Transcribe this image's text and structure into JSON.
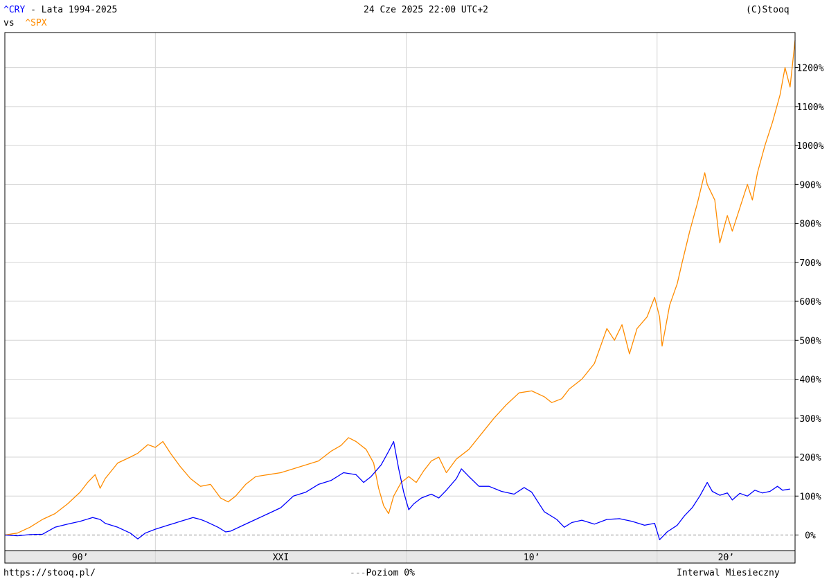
{
  "header": {
    "symbol_primary": "^CRY",
    "title_rest": " - Lata 1994-2025",
    "vs_label": "vs",
    "symbol_compare": "^SPX",
    "timestamp": "24 Cze 2025 22:00 UTC+2",
    "copyright": "(C)Stooq"
  },
  "footer": {
    "url": "https://stooq.pl/",
    "zero_level_marker": "---",
    "zero_level_label": "Poziom 0%",
    "interval": "Interwal Miesieczny"
  },
  "colors": {
    "cry": "#0000ff",
    "spx": "#ff8c00",
    "grid": "#d4d4d4",
    "axis": "#000000",
    "era_band": "#e8e8e8",
    "zero_line": "#808080"
  },
  "chart_data": {
    "type": "line",
    "x_unit": "year",
    "xlim": [
      1994.0,
      2025.5
    ],
    "ylim": [
      -40,
      1290
    ],
    "y_unit": "%",
    "y_ticks": [
      0,
      100,
      200,
      300,
      400,
      500,
      600,
      700,
      800,
      900,
      1000,
      1100,
      1200
    ],
    "y_tick_labels": [
      "0%",
      "100%",
      "200%",
      "300%",
      "400%",
      "500%",
      "600%",
      "700%",
      "800%",
      "900%",
      "1000%",
      "1100%",
      "1200%"
    ],
    "x_era_labels": [
      {
        "label": "90’",
        "from": 1994.0,
        "to": 2000.0
      },
      {
        "label": "XXI",
        "from": 2000.0,
        "to": 2010.0
      },
      {
        "label": "10’",
        "from": 2010.0,
        "to": 2020.0
      },
      {
        "label": "20’",
        "from": 2020.0,
        "to": 2025.5
      }
    ],
    "x_gridlines": [
      2000,
      2010,
      2020
    ],
    "grid": true,
    "zero_line": 0,
    "series": [
      {
        "name": "^CRY",
        "color": "#0000ff",
        "points": [
          [
            1994.0,
            0
          ],
          [
            1994.5,
            -2
          ],
          [
            1995.0,
            1
          ],
          [
            1995.5,
            2
          ],
          [
            1996.0,
            20
          ],
          [
            1996.5,
            28
          ],
          [
            1997.0,
            35
          ],
          [
            1997.5,
            45
          ],
          [
            1997.8,
            40
          ],
          [
            1998.0,
            30
          ],
          [
            1998.5,
            20
          ],
          [
            1999.0,
            5
          ],
          [
            1999.3,
            -10
          ],
          [
            1999.6,
            5
          ],
          [
            2000.0,
            15
          ],
          [
            2000.5,
            25
          ],
          [
            2001.0,
            35
          ],
          [
            2001.5,
            45
          ],
          [
            2001.8,
            40
          ],
          [
            2002.0,
            35
          ],
          [
            2002.5,
            20
          ],
          [
            2002.8,
            8
          ],
          [
            2003.0,
            10
          ],
          [
            2003.5,
            25
          ],
          [
            2004.0,
            40
          ],
          [
            2004.5,
            55
          ],
          [
            2005.0,
            70
          ],
          [
            2005.5,
            100
          ],
          [
            2006.0,
            110
          ],
          [
            2006.5,
            130
          ],
          [
            2007.0,
            140
          ],
          [
            2007.5,
            160
          ],
          [
            2008.0,
            155
          ],
          [
            2008.3,
            135
          ],
          [
            2008.6,
            150
          ],
          [
            2009.0,
            180
          ],
          [
            2009.3,
            215
          ],
          [
            2009.5,
            240
          ],
          [
            2009.7,
            170
          ],
          [
            2009.9,
            110
          ],
          [
            2010.1,
            65
          ],
          [
            2010.3,
            80
          ],
          [
            2010.6,
            95
          ],
          [
            2011.0,
            105
          ],
          [
            2011.3,
            95
          ],
          [
            2011.6,
            115
          ],
          [
            2012.0,
            145
          ],
          [
            2012.2,
            170
          ],
          [
            2012.5,
            150
          ],
          [
            2012.9,
            125
          ],
          [
            2013.3,
            125
          ],
          [
            2013.8,
            112
          ],
          [
            2014.3,
            105
          ],
          [
            2014.7,
            122
          ],
          [
            2015.0,
            110
          ],
          [
            2015.5,
            60
          ],
          [
            2016.0,
            40
          ],
          [
            2016.3,
            20
          ],
          [
            2016.6,
            32
          ],
          [
            2017.0,
            38
          ],
          [
            2017.5,
            28
          ],
          [
            2018.0,
            40
          ],
          [
            2018.5,
            42
          ],
          [
            2019.0,
            35
          ],
          [
            2019.5,
            25
          ],
          [
            2019.9,
            30
          ],
          [
            2020.1,
            -12
          ],
          [
            2020.4,
            8
          ],
          [
            2020.8,
            25
          ],
          [
            2021.1,
            50
          ],
          [
            2021.4,
            70
          ],
          [
            2021.7,
            100
          ],
          [
            2022.0,
            135
          ],
          [
            2022.2,
            112
          ],
          [
            2022.5,
            102
          ],
          [
            2022.8,
            108
          ],
          [
            2023.0,
            90
          ],
          [
            2023.3,
            107
          ],
          [
            2023.6,
            100
          ],
          [
            2023.9,
            115
          ],
          [
            2024.2,
            108
          ],
          [
            2024.5,
            112
          ],
          [
            2024.8,
            125
          ],
          [
            2025.0,
            115
          ],
          [
            2025.3,
            118
          ]
        ]
      },
      {
        "name": "^SPX",
        "color": "#ff8c00",
        "points": [
          [
            1994.0,
            0
          ],
          [
            1994.5,
            5
          ],
          [
            1995.0,
            20
          ],
          [
            1995.5,
            40
          ],
          [
            1996.0,
            55
          ],
          [
            1996.5,
            80
          ],
          [
            1997.0,
            110
          ],
          [
            1997.3,
            135
          ],
          [
            1997.6,
            155
          ],
          [
            1997.8,
            120
          ],
          [
            1998.0,
            145
          ],
          [
            1998.5,
            185
          ],
          [
            1999.0,
            200
          ],
          [
            1999.3,
            210
          ],
          [
            1999.7,
            232
          ],
          [
            2000.0,
            225
          ],
          [
            2000.3,
            240
          ],
          [
            2000.6,
            210
          ],
          [
            2001.0,
            175
          ],
          [
            2001.4,
            145
          ],
          [
            2001.8,
            125
          ],
          [
            2002.2,
            130
          ],
          [
            2002.6,
            95
          ],
          [
            2002.9,
            85
          ],
          [
            2003.2,
            100
          ],
          [
            2003.6,
            130
          ],
          [
            2004.0,
            150
          ],
          [
            2004.5,
            155
          ],
          [
            2005.0,
            160
          ],
          [
            2005.5,
            170
          ],
          [
            2006.0,
            180
          ],
          [
            2006.5,
            190
          ],
          [
            2007.0,
            215
          ],
          [
            2007.4,
            230
          ],
          [
            2007.7,
            250
          ],
          [
            2008.0,
            240
          ],
          [
            2008.4,
            220
          ],
          [
            2008.7,
            185
          ],
          [
            2008.9,
            120
          ],
          [
            2009.1,
            75
          ],
          [
            2009.3,
            55
          ],
          [
            2009.5,
            100
          ],
          [
            2009.8,
            135
          ],
          [
            2010.1,
            150
          ],
          [
            2010.4,
            135
          ],
          [
            2010.7,
            165
          ],
          [
            2011.0,
            190
          ],
          [
            2011.3,
            200
          ],
          [
            2011.6,
            160
          ],
          [
            2012.0,
            195
          ],
          [
            2012.5,
            220
          ],
          [
            2013.0,
            260
          ],
          [
            2013.5,
            300
          ],
          [
            2014.0,
            335
          ],
          [
            2014.5,
            365
          ],
          [
            2015.0,
            370
          ],
          [
            2015.5,
            355
          ],
          [
            2015.8,
            340
          ],
          [
            2016.2,
            350
          ],
          [
            2016.5,
            375
          ],
          [
            2017.0,
            400
          ],
          [
            2017.5,
            440
          ],
          [
            2018.0,
            530
          ],
          [
            2018.3,
            500
          ],
          [
            2018.6,
            540
          ],
          [
            2018.9,
            465
          ],
          [
            2019.2,
            530
          ],
          [
            2019.6,
            560
          ],
          [
            2019.9,
            610
          ],
          [
            2020.1,
            560
          ],
          [
            2020.2,
            485
          ],
          [
            2020.5,
            590
          ],
          [
            2020.8,
            645
          ],
          [
            2021.0,
            700
          ],
          [
            2021.3,
            780
          ],
          [
            2021.6,
            850
          ],
          [
            2021.9,
            930
          ],
          [
            2022.0,
            900
          ],
          [
            2022.3,
            860
          ],
          [
            2022.5,
            750
          ],
          [
            2022.8,
            820
          ],
          [
            2023.0,
            780
          ],
          [
            2023.3,
            840
          ],
          [
            2023.6,
            900
          ],
          [
            2023.8,
            860
          ],
          [
            2024.0,
            930
          ],
          [
            2024.3,
            1000
          ],
          [
            2024.6,
            1060
          ],
          [
            2024.9,
            1130
          ],
          [
            2025.1,
            1200
          ],
          [
            2025.3,
            1150
          ],
          [
            2025.5,
            1270
          ]
        ]
      }
    ]
  }
}
